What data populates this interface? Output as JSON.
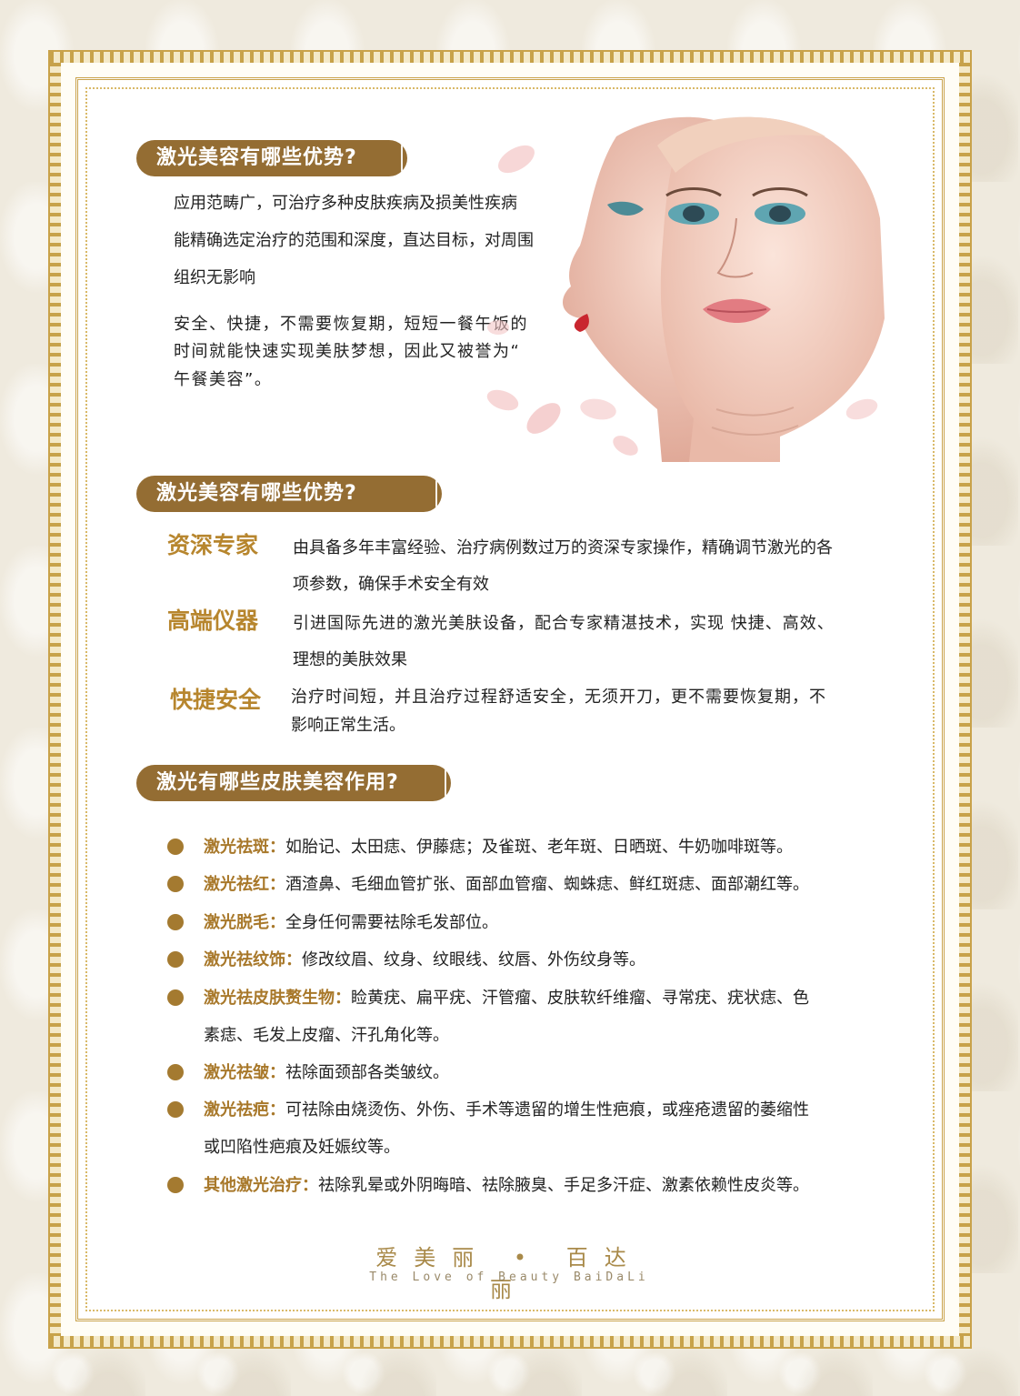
{
  "section1": {
    "title": "激光美容有哪些优势?",
    "lines": [
      "应用范畴广，可治疗多种皮肤疾病及损美性疾病",
      "能精确选定治疗的范围和深度，直达目标，对周围",
      "组织无影响",
      "安全、快捷，不需要恢复期，短短一餐午饭的",
      "时间就能快速实现美肤梦想，因此又被誉为“",
      "午餐美容”。"
    ]
  },
  "section2": {
    "title": "激光美容有哪些优势?",
    "items": [
      {
        "label": "资深专家",
        "lines": [
          "由具备多年丰富经验、治疗病例数过万的资深专家操作，精确调节激光的各",
          "项参数，确保手术安全有效"
        ]
      },
      {
        "label": "高端仪器",
        "lines": [
          "引进国际先进的激光美肤设备，配合专家精湛技术，实现 快捷、高效、",
          "理想的美肤效果"
        ]
      },
      {
        "label": "快捷安全",
        "lines": [
          "治疗时间短，并且治疗过程舒适安全，无须开刀，更不需要恢复期，不",
          "影响正常生活。"
        ]
      }
    ]
  },
  "section3": {
    "title": "激光有哪些皮肤美容作用?",
    "items": [
      {
        "label": "激光祛斑：",
        "text": "如胎记、太田痣、伊藤痣；及雀斑、老年斑、日晒斑、牛奶咖啡斑等。",
        "cont": ""
      },
      {
        "label": "激光祛红：",
        "text": "酒渣鼻、毛细血管扩张、面部血管瘤、蜘蛛痣、鲜红斑痣、面部潮红等。",
        "cont": ""
      },
      {
        "label": "激光脱毛：",
        "text": "全身任何需要祛除毛发部位。",
        "cont": ""
      },
      {
        "label": "激光祛纹饰：",
        "text": "修改纹眉、纹身、纹眼线、纹唇、外伤纹身等。",
        "cont": ""
      },
      {
        "label": "激光祛皮肤赘生物：",
        "text": "睑黄疣、扁平疣、汗管瘤、皮肤软纤维瘤、寻常疣、疣状痣、色",
        "cont": "素痣、毛发上皮瘤、汗孔角化等。"
      },
      {
        "label": "激光祛皱：",
        "text": "祛除面颈部各类皱纹。",
        "cont": ""
      },
      {
        "label": "激光祛疤：",
        "text": "可祛除由烧烫伤、外伤、手术等遗留的增生性疤痕，或痤疮遗留的萎缩性",
        "cont": "或凹陷性疤痕及妊娠纹等。"
      },
      {
        "label": "其他激光治疗：",
        "text": "祛除乳晕或外阴晦暗、祛除腋臭、手足多汗症、激素依赖性皮炎等。",
        "cont": ""
      }
    ]
  },
  "footer": {
    "chinese": "爱美丽 • 百达丽",
    "english": "The Love of Beauty BaiDaLi"
  },
  "colors": {
    "accent_brown": "#946d33",
    "label_gold": "#b7862e",
    "frame_gold": "#c9a24a"
  }
}
